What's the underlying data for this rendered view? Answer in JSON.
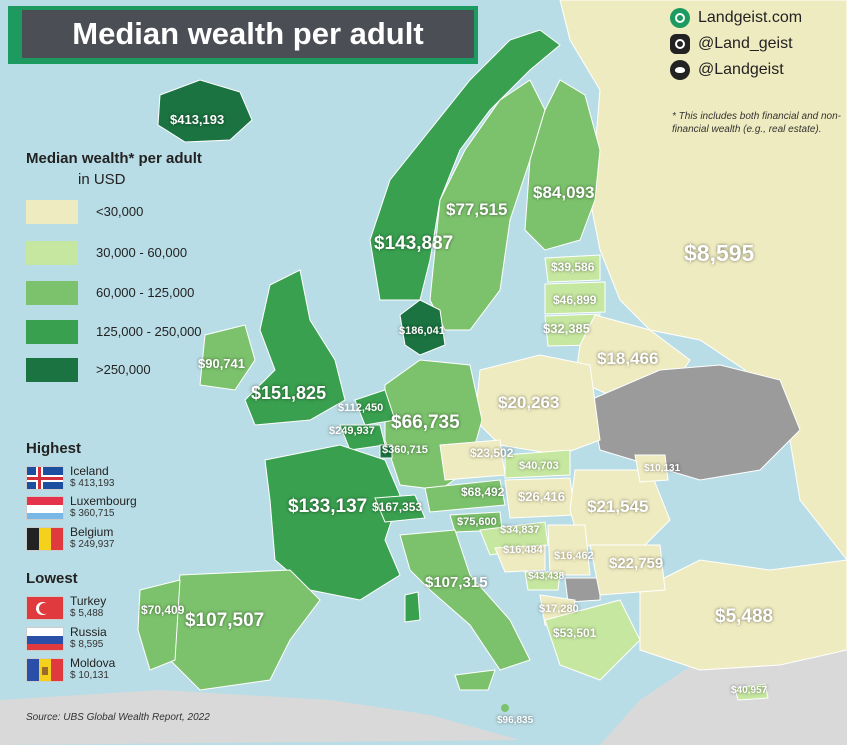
{
  "title": "Median wealth per adult",
  "brand": {
    "website": "Landgeist.com",
    "instagram": "@Land_geist",
    "twitter": "@Landgeist",
    "icons": [
      "globe-icon",
      "instagram-icon",
      "twitter-icon"
    ]
  },
  "note": "* This includes both financial and non-financial wealth (e.g., real estate).",
  "legend": {
    "title": "Median wealth* per adult",
    "subtitle": "in USD",
    "items": [
      {
        "label": "<30,000",
        "color": "#efebc0"
      },
      {
        "label": "30,000 - 60,000",
        "color": "#c6e7a0"
      },
      {
        "label": "60,000 - 125,000",
        "color": "#7cc26c"
      },
      {
        "label": "125,000 - 250,000",
        "color": "#39a04f"
      },
      {
        "label": ">250,000",
        "color": "#1a7340"
      }
    ]
  },
  "no_data_color": "#9b9b9b",
  "highest": {
    "title": "Highest",
    "items": [
      {
        "country": "Iceland",
        "value": "$ 413,193",
        "flag": "iceland-flag"
      },
      {
        "country": "Luxembourg",
        "value": "$ 360,715",
        "flag": "luxembourg-flag"
      },
      {
        "country": "Belgium",
        "value": "$ 249,937",
        "flag": "belgium-flag"
      }
    ]
  },
  "lowest": {
    "title": "Lowest",
    "items": [
      {
        "country": "Turkey",
        "value": "$ 5,488",
        "flag": "turkey-flag"
      },
      {
        "country": "Russia",
        "value": "$ 8,595",
        "flag": "russia-flag"
      },
      {
        "country": "Moldova",
        "value": "$ 10,131",
        "flag": "moldova-flag"
      }
    ]
  },
  "source": "Source: UBS Global Wealth Report, 2022",
  "map_values": {
    "iceland": "$413,193",
    "norway": "$143,887",
    "sweden": "$77,515",
    "finland": "$84,093",
    "russia": "$8,595",
    "estonia": "$39,586",
    "latvia": "$46,899",
    "lithuania": "$32,385",
    "belarus": "$18,466",
    "denmark": "$186,041",
    "ireland": "$90,741",
    "uk": "$151,825",
    "netherlands": "$112,450",
    "belgium": "$249,937",
    "luxembourg": "$360,715",
    "germany": "$66,735",
    "poland": "$20,263",
    "czechia": "$23,502",
    "slovakia": "$40,703",
    "moldova": "$10,131",
    "austria": "$68,492",
    "hungary": "$26,416",
    "romania": "$21,545",
    "france": "$133,137",
    "switzerland": "$167,353",
    "slovenia": "$75,600",
    "croatia": "$34,837",
    "bosnia": "$16,484",
    "serbia": "$16,462",
    "bulgaria": "$22,759",
    "montenegro": "$43,438",
    "albania": "$17,280",
    "greece": "$53,501",
    "turkey": "$5,488",
    "italy": "$107,315",
    "spain": "$107,507",
    "portugal": "$70,409",
    "cyprus": "$40,957",
    "malta": "$96,835"
  }
}
